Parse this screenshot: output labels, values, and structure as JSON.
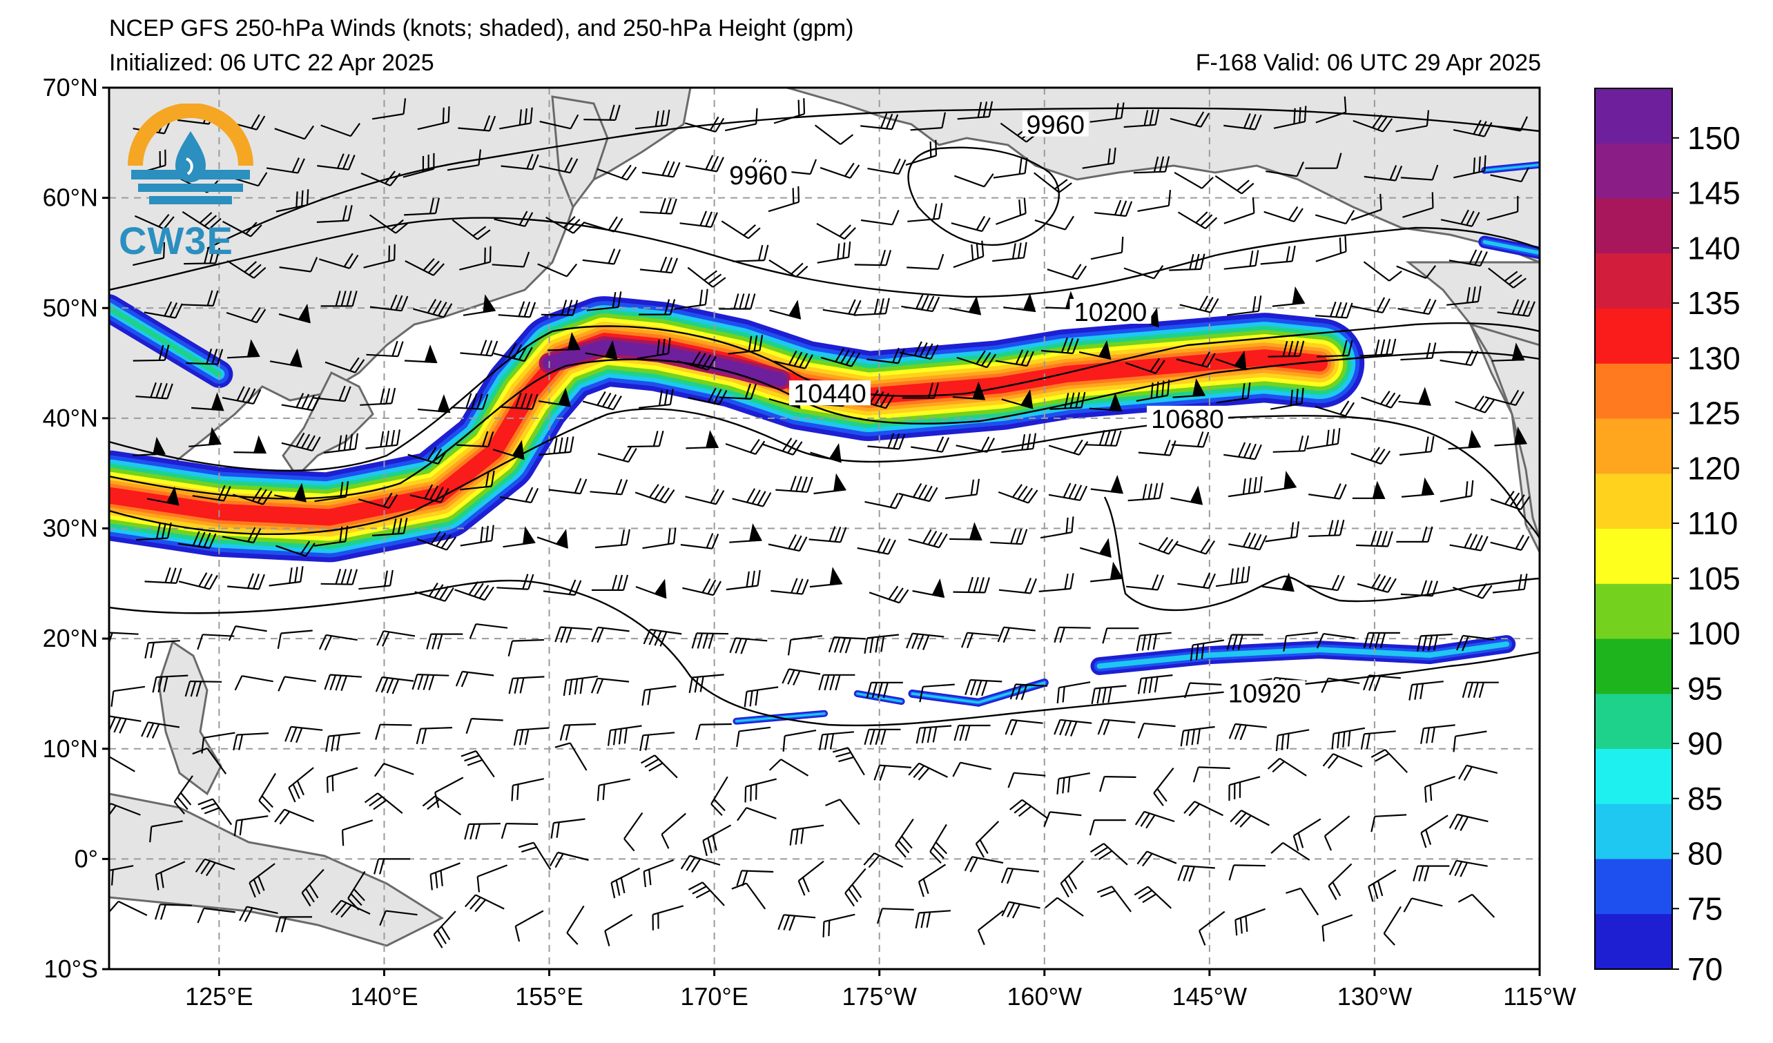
{
  "header": {
    "title": "NCEP GFS 250-hPa Winds (knots; shaded), and 250-hPa Height (gpm)",
    "initialized": "Initialized: 06 UTC 22 Apr 2025",
    "valid": "F-168  Valid: 06 UTC 29 Apr 2025"
  },
  "logo": {
    "text": "CW3E",
    "icon": "water-drop-sun-logo-icon"
  },
  "map": {
    "lat_labels": [
      "70°N",
      "60°N",
      "50°N",
      "40°N",
      "30°N",
      "20°N",
      "10°N",
      "0°",
      "10°S"
    ],
    "lon_labels": [
      "125°E",
      "140°E",
      "155°E",
      "170°E",
      "175°W",
      "160°W",
      "145°W",
      "130°W",
      "115°W"
    ],
    "lat_range": [
      -10,
      70
    ],
    "lon_range_east": [
      115,
      245
    ],
    "grid": true,
    "land_color": "#e4e4e4",
    "contour_labels": [
      {
        "text": "9960",
        "lon": 201,
        "lat": 66.2
      },
      {
        "text": "9960",
        "lon": 174,
        "lat": 61.6
      },
      {
        "text": "10200",
        "lon": 206,
        "lat": 49.2
      },
      {
        "text": "10440",
        "lon": 180.5,
        "lat": 41.8
      },
      {
        "text": "10680",
        "lon": 213,
        "lat": 39.5
      },
      {
        "text": "10920",
        "lon": 220,
        "lat": 14.6
      }
    ]
  },
  "colorbar": {
    "labels": [
      "150",
      "145",
      "140",
      "135",
      "130",
      "125",
      "120",
      "110",
      "105",
      "100",
      "95",
      "90",
      "85",
      "80",
      "75",
      "70"
    ],
    "colors": [
      "#6e1f9c",
      "#8a1d86",
      "#a8175c",
      "#d21e3c",
      "#fa1b1b",
      "#ff7a1e",
      "#ffa51e",
      "#ffd21e",
      "#ffff1e",
      "#74d21e",
      "#1eb41e",
      "#1ed28c",
      "#1ef0f0",
      "#1ec8f0",
      "#1e50f0",
      "#1e1ed2"
    ]
  },
  "wind_colors": {
    "70": "#1e1ed2",
    "80": "#1e50f0",
    "85": "#1ec8f0",
    "95": "#1ed28c",
    "100": "#74d21e",
    "105": "#ffff1e",
    "110": "#ffd21e",
    "120": "#ffa51e",
    "125": "#ff7a1e",
    "135": "#fa1b1b",
    "145": "#a8175c",
    "150": "#6e1f9c"
  }
}
